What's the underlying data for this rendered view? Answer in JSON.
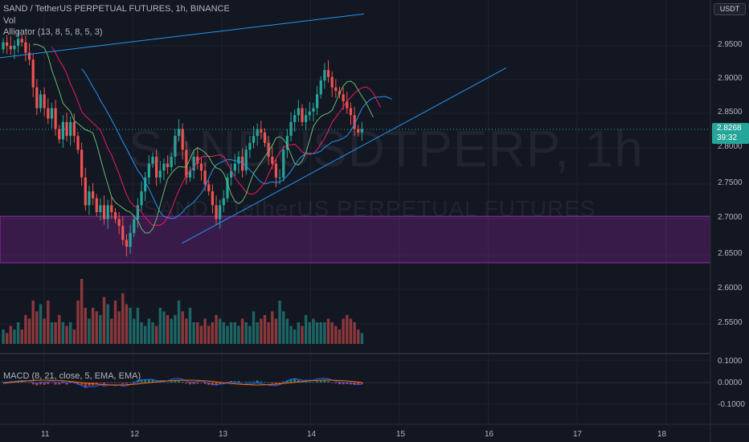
{
  "header": {
    "symbol": "SAND",
    "title": "SAND / TetherUS PERPETUAL FUTURES, 1h, BINANCE",
    "vol_label": "Vol",
    "alligator_label": "Alligator (13, 8, 5, 8, 5, 3)"
  },
  "watermark": {
    "symbol": "SANDUSDTPERP, 1h",
    "description": "SAND / TetherUS PERPETUAL FUTURES"
  },
  "price_axis": {
    "currency": "USDT",
    "labels": [
      "2.9500",
      "2.9000",
      "2.8500",
      "2.8000",
      "2.7500",
      "2.7000",
      "2.6500",
      "2.6000",
      "2.5500"
    ],
    "current_price": "2.8268",
    "countdown": "39:32"
  },
  "macd": {
    "label": "MACD (8, 21, close, 5, EMA, EMA)",
    "axis_labels": [
      "0.1000",
      "0.0000",
      "-0.1000"
    ]
  },
  "time_axis": {
    "labels": [
      "11",
      "12",
      "13",
      "14",
      "15",
      "16",
      "17",
      "18"
    ]
  },
  "colors": {
    "background": "#131722",
    "bull": "#26a69a",
    "bear": "#ef5350",
    "zone": "#9c27b0",
    "channel": "#2196f3",
    "jaw": "#2196f3",
    "teeth": "#e91e63",
    "lips": "#66bb6a",
    "macd_line": "#2962ff",
    "signal_line": "#ff6d00"
  },
  "chart_data": {
    "type": "candlestick",
    "interval": "1h",
    "day_labels": [
      "11",
      "12",
      "13",
      "14",
      "15",
      "16",
      "17",
      "18"
    ],
    "ylim": [
      2.53,
      2.99
    ],
    "demand_zone": [
      2.637,
      2.704
    ],
    "channel": {
      "upper": [
        [
          2.28,
          2.806
        ],
        [
          14.6,
          2.996
        ]
      ],
      "lower": [
        [
          12.55,
          2.665
        ],
        [
          16.2,
          2.918
        ]
      ]
    },
    "close": [
      2.955,
      2.95,
      2.945,
      2.95,
      2.96,
      2.955,
      2.94,
      2.93,
      2.89,
      2.86,
      2.88,
      2.86,
      2.845,
      2.86,
      2.83,
      2.815,
      2.84,
      2.82,
      2.84,
      2.82,
      2.8,
      2.76,
      2.72,
      2.74,
      2.73,
      2.71,
      2.72,
      2.7,
      2.72,
      2.71,
      2.7,
      2.69,
      2.67,
      2.66,
      2.68,
      2.7,
      2.72,
      2.74,
      2.76,
      2.78,
      2.79,
      2.76,
      2.77,
      2.78,
      2.775,
      2.79,
      2.82,
      2.83,
      2.8,
      2.76,
      2.77,
      2.79,
      2.78,
      2.77,
      2.75,
      2.74,
      2.72,
      2.7,
      2.72,
      2.73,
      2.76,
      2.77,
      2.78,
      2.79,
      2.77,
      2.8,
      2.81,
      2.82,
      2.83,
      2.825,
      2.81,
      2.79,
      2.78,
      2.76,
      2.76,
      2.8,
      2.82,
      2.84,
      2.85,
      2.86,
      2.84,
      2.85,
      2.855,
      2.86,
      2.88,
      2.9,
      2.915,
      2.905,
      2.89,
      2.885,
      2.88,
      2.87,
      2.86,
      2.85,
      2.83,
      2.825,
      2.83
    ],
    "volume": [
      0.2,
      0.15,
      0.25,
      0.2,
      0.3,
      0.2,
      0.4,
      0.35,
      0.6,
      0.45,
      0.55,
      0.35,
      0.6,
      0.3,
      0.3,
      0.4,
      0.3,
      0.25,
      0.3,
      0.2,
      0.6,
      0.9,
      0.5,
      0.35,
      0.5,
      0.45,
      0.4,
      0.65,
      0.55,
      0.35,
      0.6,
      0.45,
      0.7,
      0.55,
      0.5,
      0.35,
      0.5,
      0.3,
      0.25,
      0.35,
      0.3,
      0.25,
      0.5,
      0.45,
      0.4,
      0.35,
      0.4,
      0.6,
      0.45,
      0.35,
      0.5,
      0.3,
      0.3,
      0.25,
      0.35,
      0.25,
      0.3,
      0.4,
      0.35,
      0.3,
      0.25,
      0.3,
      0.3,
      0.25,
      0.35,
      0.3,
      0.25,
      0.45,
      0.3,
      0.35,
      0.4,
      0.3,
      0.45,
      0.35,
      0.6,
      0.45,
      0.35,
      0.25,
      0.2,
      0.3,
      0.25,
      0.4,
      0.3,
      0.35,
      0.3,
      0.3,
      0.3,
      0.35,
      0.3,
      0.25,
      0.2,
      0.35,
      0.4,
      0.35,
      0.3,
      0.2,
      0.15
    ]
  }
}
